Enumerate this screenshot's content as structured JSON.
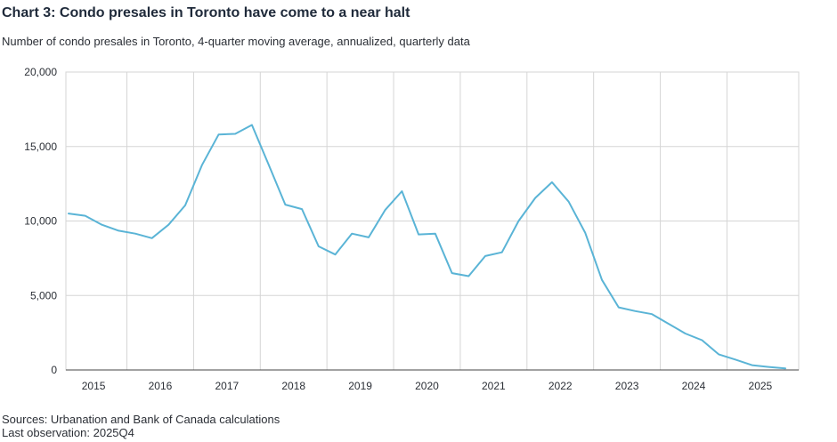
{
  "header": {
    "title": "Chart 3: Condo presales in Toronto have come to a near halt",
    "subtitle": "Number of condo presales in Toronto, 4-quarter moving average, annualized, quarterly data"
  },
  "footer": {
    "sources": "Sources: Urbanation and Bank of Canada calculations",
    "last_observation": "Last observation: 2025Q4"
  },
  "colors": {
    "series": "#5ab4d6",
    "grid": "#d5d5d5",
    "axis": "#444444"
  },
  "chart_data": {
    "type": "line",
    "title": "Chart 3: Condo presales in Toronto have come to a near halt",
    "subtitle": "Number of condo presales in Toronto, 4-quarter moving average, annualized, quarterly data",
    "xlabel": "",
    "ylabel": "",
    "ylim": [
      0,
      20000
    ],
    "yticks": [
      0,
      5000,
      10000,
      15000,
      20000
    ],
    "ytick_labels": [
      "0",
      "5,000",
      "10,000",
      "15,000",
      "20,000"
    ],
    "xticks": [
      "2015",
      "2016",
      "2017",
      "2018",
      "2019",
      "2020",
      "2021",
      "2022",
      "2023",
      "2024",
      "2025"
    ],
    "grid": true,
    "legend": "none",
    "x": [
      "2015Q1",
      "2015Q2",
      "2015Q3",
      "2015Q4",
      "2016Q1",
      "2016Q2",
      "2016Q3",
      "2016Q4",
      "2017Q1",
      "2017Q2",
      "2017Q3",
      "2017Q4",
      "2018Q1",
      "2018Q2",
      "2018Q3",
      "2018Q4",
      "2019Q1",
      "2019Q2",
      "2019Q3",
      "2019Q4",
      "2020Q1",
      "2020Q2",
      "2020Q3",
      "2020Q4",
      "2021Q1",
      "2021Q2",
      "2021Q3",
      "2021Q4",
      "2022Q1",
      "2022Q2",
      "2022Q3",
      "2022Q4",
      "2023Q1",
      "2023Q2",
      "2023Q3",
      "2023Q4",
      "2024Q1",
      "2024Q2",
      "2024Q3",
      "2024Q4",
      "2025Q1",
      "2025Q2",
      "2025Q3",
      "2025Q4"
    ],
    "series": [
      {
        "values": [
          10500,
          10350,
          9750,
          9350,
          9150,
          8850,
          9750,
          11050,
          13750,
          15800,
          15850,
          16450,
          13800,
          11100,
          10800,
          8300,
          7750,
          9150,
          8900,
          10750,
          12000,
          9100,
          9150,
          6500,
          6300,
          7650,
          7900,
          10000,
          11550,
          12600,
          11300,
          9200,
          6050,
          4200,
          3950,
          3750,
          3100,
          2450,
          2000,
          1050,
          700,
          320,
          200,
          100
        ]
      }
    ]
  }
}
